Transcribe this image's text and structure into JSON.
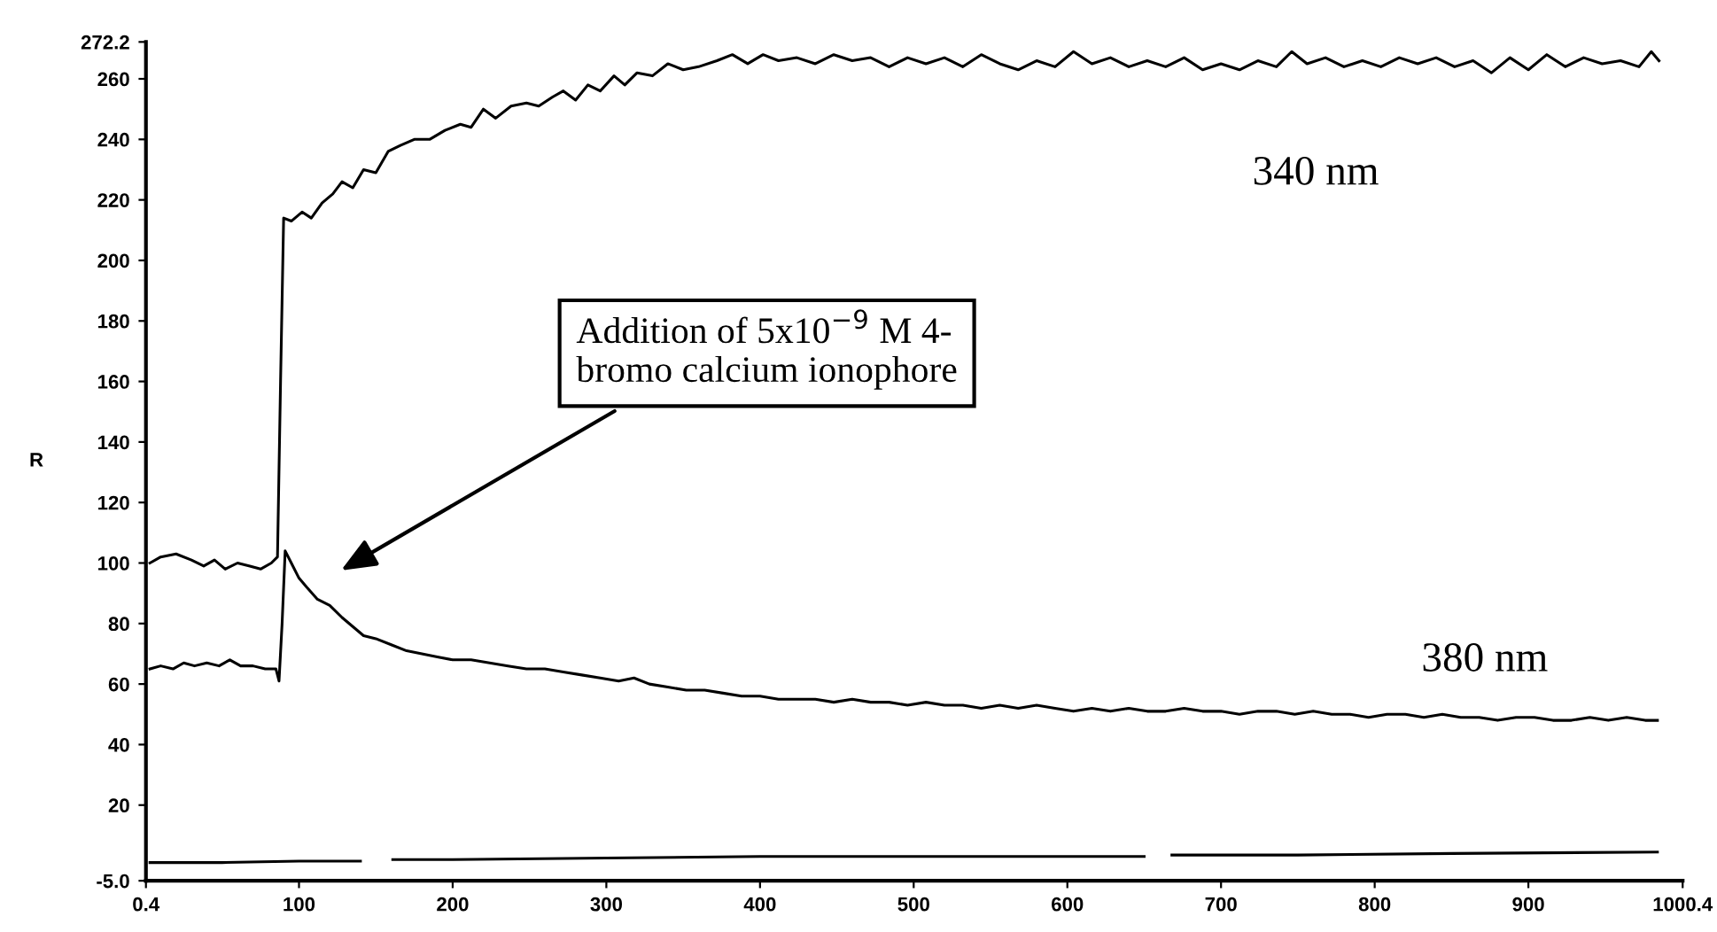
{
  "chart_data": {
    "type": "line",
    "ylabel": "R",
    "xlim": [
      0.4,
      1000.4
    ],
    "xticks": [
      0.4,
      100,
      200,
      300,
      400,
      500,
      600,
      700,
      800,
      900,
      1000.4
    ],
    "ylim": [
      -5.0,
      272.2
    ],
    "yticks": [
      {
        "value": -5.0,
        "label": "-5.0"
      },
      20,
      40,
      60,
      80,
      100,
      120,
      140,
      160,
      180,
      200,
      220,
      240,
      260,
      272.2
    ],
    "grid": false,
    "legend": false,
    "marker": "none",
    "line_style": "solid",
    "annotations": [
      "Addition of 5x10$^{−9}$ M 4-\nbromo calcium ionophore"
    ],
    "series": [
      {
        "name": "340 nm",
        "color": "#000000",
        "x": [
          3,
          10,
          20,
          30,
          38,
          45,
          52,
          60,
          68,
          75,
          82,
          86,
          88,
          90,
          95,
          102,
          108,
          115,
          122,
          128,
          135,
          142,
          150,
          158,
          166,
          175,
          185,
          195,
          205,
          212,
          220,
          228,
          238,
          248,
          256,
          265,
          272,
          280,
          288,
          296,
          305,
          312,
          320,
          330,
          340,
          350,
          360,
          372,
          382,
          392,
          402,
          412,
          424,
          436,
          448,
          460,
          472,
          484,
          496,
          508,
          520,
          532,
          544,
          556,
          568,
          580,
          592,
          604,
          616,
          628,
          640,
          652,
          664,
          676,
          688,
          700,
          712,
          724,
          736,
          746,
          756,
          768,
          780,
          792,
          804,
          816,
          828,
          840,
          852,
          864,
          876,
          888,
          900,
          912,
          924,
          936,
          948,
          960,
          972,
          980,
          985
        ],
        "values": [
          100,
          102,
          103,
          101,
          99,
          101,
          98,
          100,
          99,
          98,
          100,
          102,
          160,
          214,
          213,
          216,
          214,
          219,
          222,
          226,
          224,
          230,
          229,
          236,
          238,
          240,
          240,
          243,
          245,
          244,
          250,
          247,
          251,
          252,
          251,
          254,
          256,
          253,
          258,
          256,
          261,
          258,
          262,
          261,
          265,
          263,
          264,
          266,
          268,
          265,
          268,
          266,
          267,
          265,
          268,
          266,
          267,
          264,
          267,
          265,
          267,
          264,
          268,
          265,
          263,
          266,
          264,
          269,
          265,
          267,
          264,
          266,
          264,
          267,
          263,
          265,
          263,
          266,
          264,
          269,
          265,
          267,
          264,
          266,
          264,
          267,
          265,
          267,
          264,
          266,
          262,
          267,
          263,
          268,
          264,
          267,
          265,
          266,
          264,
          269,
          266
        ]
      },
      {
        "name": "380 nm",
        "color": "#000000",
        "x": [
          3,
          10,
          18,
          25,
          32,
          40,
          48,
          55,
          62,
          70,
          78,
          85,
          87,
          89,
          91,
          95,
          100,
          105,
          112,
          120,
          128,
          135,
          142,
          150,
          160,
          170,
          180,
          190,
          200,
          212,
          224,
          236,
          248,
          260,
          272,
          284,
          296,
          308,
          318,
          328,
          340,
          352,
          364,
          376,
          388,
          400,
          412,
          424,
          436,
          448,
          460,
          472,
          484,
          496,
          508,
          520,
          532,
          544,
          556,
          568,
          580,
          592,
          604,
          616,
          628,
          640,
          652,
          664,
          676,
          688,
          700,
          712,
          724,
          736,
          748,
          760,
          772,
          784,
          796,
          808,
          820,
          832,
          844,
          856,
          868,
          880,
          892,
          904,
          916,
          928,
          940,
          952,
          964,
          976,
          984
        ],
        "values": [
          65,
          66,
          65,
          67,
          66,
          67,
          66,
          68,
          66,
          66,
          65,
          65,
          61,
          80,
          104,
          100,
          95,
          92,
          88,
          86,
          82,
          79,
          76,
          75,
          73,
          71,
          70,
          69,
          68,
          68,
          67,
          66,
          65,
          65,
          64,
          63,
          62,
          61,
          62,
          60,
          59,
          58,
          58,
          57,
          56,
          56,
          55,
          55,
          55,
          54,
          55,
          54,
          54,
          53,
          54,
          53,
          53,
          52,
          53,
          52,
          53,
          52,
          51,
          52,
          51,
          52,
          51,
          51,
          52,
          51,
          51,
          50,
          51,
          51,
          50,
          51,
          50,
          50,
          49,
          50,
          50,
          49,
          50,
          49,
          49,
          48,
          49,
          49,
          48,
          48,
          49,
          48,
          49,
          48,
          48
        ]
      },
      {
        "color": "#000000",
        "x": [
          3,
          50,
          100,
          140,
          143,
          161,
          200,
          300,
          400,
          500,
          600,
          650,
          655,
          668,
          750,
          850,
          984
        ],
        "values": [
          1,
          1,
          1.5,
          1.5,
          null,
          2,
          2,
          2.5,
          3,
          3,
          3,
          3,
          null,
          3.5,
          3.5,
          4,
          4.5
        ]
      }
    ]
  }
}
